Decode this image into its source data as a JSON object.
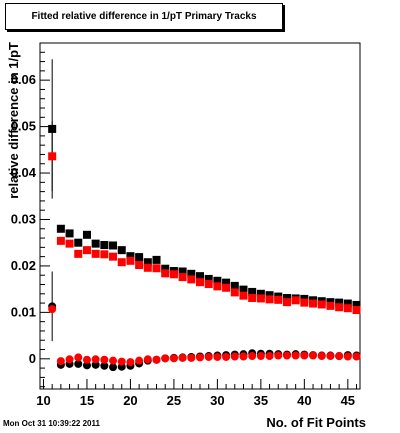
{
  "title": "Fitted relative difference in 1/pT Primary Tracks",
  "timestamp": "Mon Oct 31 10:39:22 2011",
  "chart_data": {
    "type": "scatter",
    "title": "Fitted relative difference in 1/pT Primary Tracks",
    "xlabel": "No. of Fit Points",
    "ylabel": "relative difference in 1/pT",
    "xlim": [
      9.6,
      46.4
    ],
    "ylim": [
      -0.0065,
      0.068
    ],
    "xticks": [
      "10",
      "15",
      "20",
      "25",
      "30",
      "35",
      "40",
      "45"
    ],
    "yticks": [
      "0",
      "0.01",
      "0.02",
      "0.03",
      "0.04",
      "0.05",
      "0.06"
    ],
    "series": [
      {
        "marker": "square",
        "color": "#000000",
        "x": [
          11,
          12,
          13,
          14,
          15,
          16,
          17,
          18,
          19,
          20,
          21,
          22,
          23,
          24,
          25,
          26,
          27,
          28,
          29,
          30,
          31,
          32,
          33,
          34,
          35,
          36,
          37,
          38,
          39,
          40,
          41,
          42,
          43,
          44,
          45,
          46
        ],
        "y": [
          0.0495,
          0.028,
          0.027,
          0.025,
          0.0267,
          0.0248,
          0.0245,
          0.0244,
          0.0234,
          0.0221,
          0.0219,
          0.0208,
          0.0213,
          0.0194,
          0.0189,
          0.0188,
          0.0183,
          0.0178,
          0.0172,
          0.0168,
          0.0164,
          0.0157,
          0.0149,
          0.0144,
          0.014,
          0.0137,
          0.0134,
          0.0131,
          0.013,
          0.0129,
          0.0126,
          0.0124,
          0.0122,
          0.0121,
          0.0119,
          0.0116
        ],
        "err": [
          0.015,
          0,
          0,
          0,
          0,
          0,
          0,
          0,
          0,
          0,
          0,
          0,
          0,
          0,
          0,
          0,
          0,
          0,
          0,
          0,
          0,
          0,
          0,
          0,
          0,
          0,
          0,
          0,
          0,
          0,
          0,
          0,
          0,
          0,
          0,
          0
        ]
      },
      {
        "marker": "square",
        "color": "#ff0000",
        "x": [
          11,
          12,
          13,
          14,
          15,
          16,
          17,
          18,
          19,
          20,
          21,
          22,
          23,
          24,
          25,
          26,
          27,
          28,
          29,
          30,
          31,
          32,
          33,
          34,
          35,
          36,
          37,
          38,
          39,
          40,
          41,
          42,
          43,
          44,
          45,
          46
        ],
        "y": [
          0.0436,
          0.0254,
          0.0248,
          0.0226,
          0.0234,
          0.0226,
          0.0225,
          0.022,
          0.0208,
          0.0211,
          0.0202,
          0.0196,
          0.0195,
          0.0184,
          0.0182,
          0.0176,
          0.0171,
          0.0165,
          0.0161,
          0.0156,
          0.0153,
          0.0143,
          0.0136,
          0.0131,
          0.013,
          0.0128,
          0.0127,
          0.0122,
          0.0126,
          0.0121,
          0.0119,
          0.0117,
          0.0114,
          0.0111,
          0.0109,
          0.0105
        ],
        "err": [
          0.0075,
          0,
          0,
          0,
          0,
          0,
          0,
          0,
          0,
          0,
          0,
          0,
          0,
          0,
          0,
          0,
          0,
          0,
          0,
          0,
          0,
          0,
          0,
          0,
          0,
          0,
          0,
          0,
          0,
          0,
          0,
          0,
          0,
          0,
          0,
          0
        ]
      },
      {
        "marker": "circle",
        "color": "#000000",
        "x": [
          11,
          12,
          13,
          14,
          15,
          16,
          17,
          18,
          19,
          20,
          21,
          22,
          23,
          24,
          25,
          26,
          27,
          28,
          29,
          30,
          31,
          32,
          33,
          34,
          35,
          36,
          37,
          38,
          39,
          40,
          41,
          42,
          43,
          44,
          45,
          46
        ],
        "y": [
          0.0113,
          -0.0013,
          -0.0011,
          -0.0011,
          -0.0014,
          -0.0013,
          -0.0015,
          -0.0018,
          -0.0017,
          -0.0015,
          -0.001,
          -0.0004,
          -0.0002,
          0.0001,
          0.0002,
          0.0003,
          0.0004,
          0.0005,
          0.0006,
          0.0007,
          0.0008,
          0.0009,
          0.001,
          0.0012,
          0.0011,
          0.0011,
          0.001,
          0.0009,
          0.001,
          0.0009,
          0.0008,
          0.0007,
          0.0007,
          0.0006,
          0.0008,
          0.0007
        ],
        "err": [
          0.0075,
          0,
          0,
          0,
          0,
          0,
          0,
          0,
          0,
          0,
          0,
          0,
          0,
          0,
          0,
          0,
          0,
          0,
          0,
          0,
          0,
          0,
          0,
          0,
          0,
          0,
          0,
          0,
          0,
          0,
          0,
          0,
          0,
          0,
          0,
          0
        ]
      },
      {
        "marker": "circle",
        "color": "#ff0000",
        "x": [
          11,
          12,
          13,
          14,
          15,
          16,
          17,
          18,
          19,
          20,
          21,
          22,
          23,
          24,
          25,
          26,
          27,
          28,
          29,
          30,
          31,
          32,
          33,
          34,
          35,
          36,
          37,
          38,
          39,
          40,
          41,
          42,
          43,
          44,
          45,
          46
        ],
        "y": [
          0.0107,
          -0.0005,
          -0.0001,
          0.0003,
          -0.0002,
          -0.0001,
          -0.0002,
          -0.0004,
          -0.0006,
          -0.0007,
          -0.0004,
          -0.0001,
          -0.0002,
          0.0001,
          0.0001,
          0.0002,
          0.0002,
          0.0003,
          0.0004,
          0.0004,
          0.0004,
          0.0005,
          0.0005,
          0.0006,
          0.0006,
          0.0006,
          0.0007,
          0.0007,
          0.0007,
          0.0007,
          0.0007,
          0.0006,
          0.0006,
          0.0006,
          0.0005,
          0.0005
        ],
        "err": [
          0,
          0,
          0,
          0,
          0,
          0,
          0,
          0,
          0,
          0,
          0,
          0,
          0,
          0,
          0,
          0,
          0,
          0,
          0,
          0,
          0,
          0,
          0,
          0,
          0,
          0,
          0,
          0,
          0,
          0,
          0,
          0,
          0,
          0,
          0,
          0
        ]
      }
    ]
  }
}
